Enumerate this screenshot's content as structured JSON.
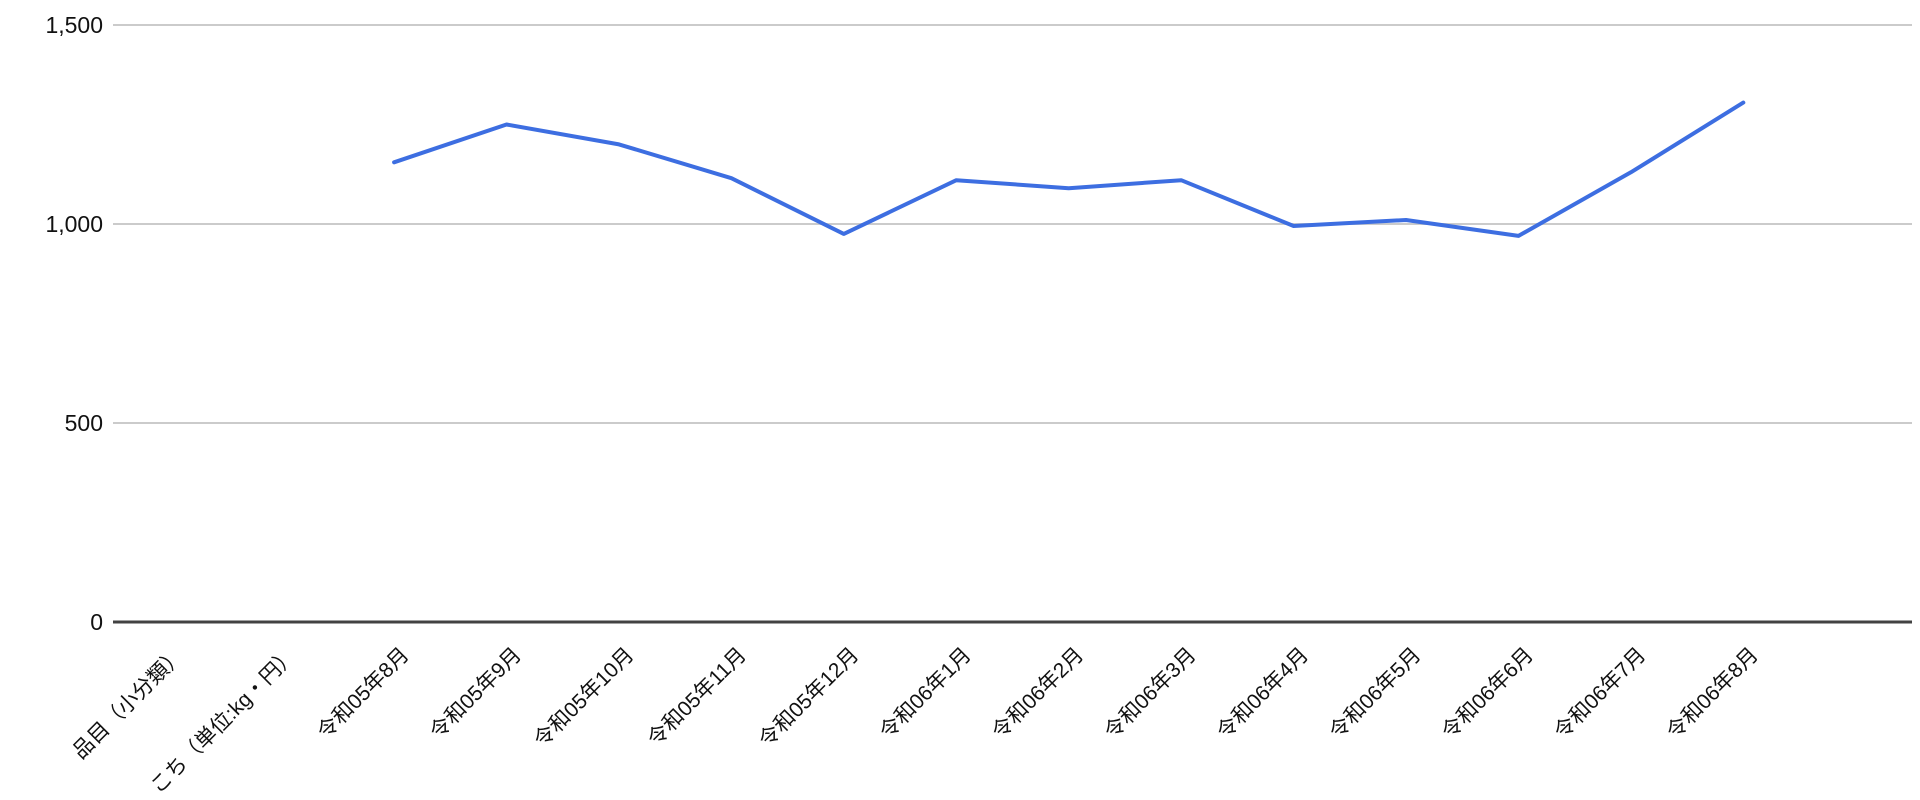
{
  "chart": {
    "title": "",
    "background_color": "#ffffff"
  },
  "chart_data": {
    "type": "line",
    "title": "",
    "xlabel": "",
    "ylabel": "",
    "categories": [
      "品目（小分類）",
      "こち（単位:kg・円）",
      "令和05年8月",
      "令和05年9月",
      "令和05年10月",
      "令和05年11月",
      "令和05年12月",
      "令和06年1月",
      "令和06年2月",
      "令和06年3月",
      "令和06年4月",
      "令和06年5月",
      "令和06年6月",
      "令和06年7月",
      "令和06年8月",
      ""
    ],
    "values": [
      null,
      null,
      1155,
      1250,
      1200,
      1115,
      975,
      1110,
      1090,
      1110,
      995,
      1010,
      970,
      1130,
      1305,
      null
    ],
    "ylim": [
      0,
      1500
    ],
    "yticks": [
      0,
      500,
      1000,
      1500
    ],
    "ytick_labels": [
      "0",
      "500",
      "1,000",
      "1,500"
    ],
    "grid": true,
    "legend": "none",
    "x_label_rotation": -45,
    "line_color": "#3d6ee1",
    "grid_color": "#cbcbcb",
    "axis_color": "#424242",
    "text_color": "#111111"
  }
}
